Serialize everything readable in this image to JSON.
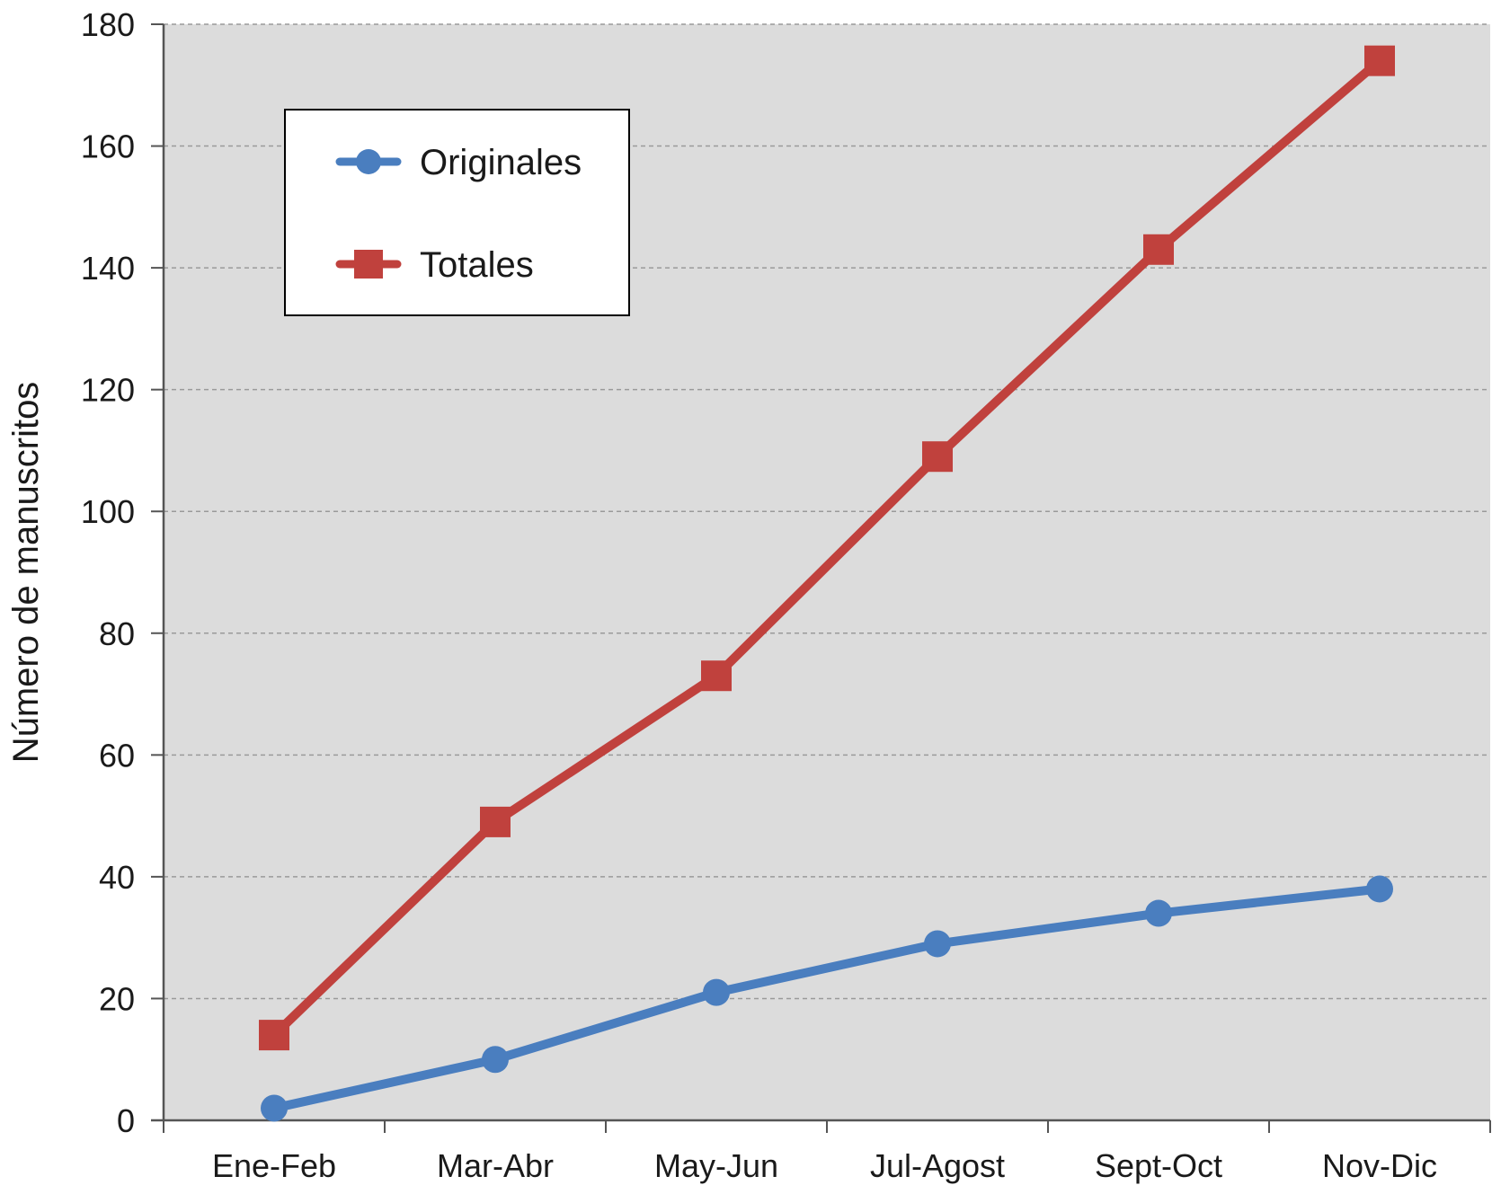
{
  "chart_data": {
    "type": "line",
    "title": "",
    "xlabel": "",
    "ylabel": "Número de manuscritos",
    "categories": [
      "Ene-Feb",
      "Mar-Abr",
      "May-Jun",
      "Jul-Agost",
      "Sept-Oct",
      "Nov-Dic"
    ],
    "series": [
      {
        "name": "Originales",
        "values": [
          2,
          10,
          21,
          29,
          34,
          38
        ],
        "color": "#4a7ebf",
        "marker": "circle"
      },
      {
        "name": "Totales",
        "values": [
          14,
          49,
          73,
          109,
          143,
          174
        ],
        "color": "#c0413d",
        "marker": "square"
      }
    ],
    "ylim": [
      0,
      180
    ],
    "yticks": [
      0,
      20,
      40,
      60,
      80,
      100,
      120,
      140,
      160,
      180
    ],
    "grid": true,
    "background": "#dcdcdc",
    "legend_position": "top-left"
  }
}
